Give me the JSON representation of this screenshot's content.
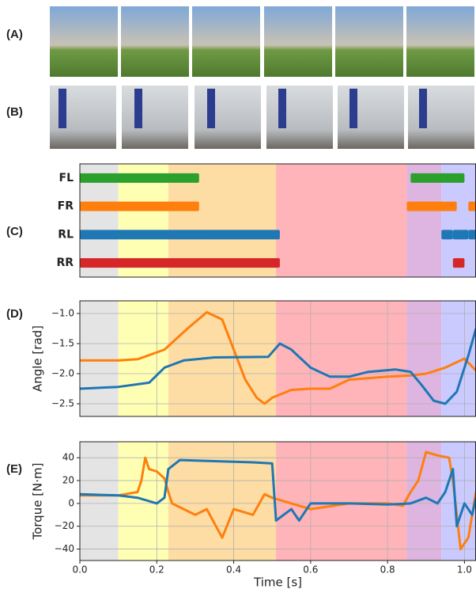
{
  "panels": [
    {
      "label": "(A)"
    },
    {
      "label": "(B)"
    }
  ],
  "chart_data": [
    {
      "type": "gantt",
      "label": "(C)",
      "xlim": [
        0,
        1.03
      ],
      "phases": [
        {
          "start": 0,
          "end": 0.1,
          "color": "#e4e4e4"
        },
        {
          "start": 0.1,
          "end": 0.23,
          "color": "#ffffb3"
        },
        {
          "start": 0.23,
          "end": 0.51,
          "color": "#fddda4"
        },
        {
          "start": 0.51,
          "end": 0.85,
          "color": "#ffb4b9"
        },
        {
          "start": 0.85,
          "end": 0.94,
          "color": "#ddb5e0"
        },
        {
          "start": 0.94,
          "end": 1.03,
          "color": "#cacaff"
        }
      ],
      "categories": [
        "FL",
        "FR",
        "RL",
        "RR"
      ],
      "colors": [
        "#2ca02c",
        "#ff7f0e",
        "#1f77b4",
        "#d62728"
      ],
      "intervals": [
        [
          [
            0,
            0.31
          ],
          [
            0.86,
            1.0
          ]
        ],
        [
          [
            0,
            0.31
          ],
          [
            0.85,
            0.98
          ],
          [
            1.01,
            1.03
          ]
        ],
        [
          [
            0,
            0.52
          ],
          [
            0.94,
            0.97
          ],
          [
            0.97,
            1.01
          ],
          [
            1.01,
            1.03
          ]
        ],
        [
          [
            0,
            0.52
          ],
          [
            0.97,
            1.0
          ]
        ]
      ]
    },
    {
      "type": "line",
      "label": "(D)",
      "ylabel": "Angle [rad]",
      "xlim": [
        0,
        1.03
      ],
      "ylim": [
        -2.71,
        -0.79
      ],
      "yticks": [
        {
          "value": -2.5,
          "label": "−2.5"
        },
        {
          "value": -2.0,
          "label": "−2.0"
        },
        {
          "value": -1.5,
          "label": "−1.5"
        },
        {
          "value": -1.0,
          "label": "−1.0"
        }
      ],
      "grid": true,
      "series": [
        {
          "color": "#ff7f0e",
          "x": [
            0,
            0.1,
            0.15,
            0.22,
            0.28,
            0.33,
            0.37,
            0.4,
            0.43,
            0.46,
            0.48,
            0.5,
            0.55,
            0.6,
            0.65,
            0.7,
            0.8,
            0.86,
            0.9,
            0.95,
            1.0,
            1.03
          ],
          "values": [
            -1.78,
            -1.78,
            -1.76,
            -1.6,
            -1.25,
            -0.98,
            -1.1,
            -1.6,
            -2.1,
            -2.4,
            -2.5,
            -2.4,
            -2.27,
            -2.25,
            -2.25,
            -2.1,
            -2.05,
            -2.03,
            -2.0,
            -1.9,
            -1.75,
            -1.95
          ]
        },
        {
          "color": "#1f77b4",
          "x": [
            0,
            0.1,
            0.18,
            0.22,
            0.27,
            0.35,
            0.49,
            0.52,
            0.55,
            0.6,
            0.65,
            0.7,
            0.75,
            0.82,
            0.86,
            0.89,
            0.92,
            0.95,
            0.98,
            1.01,
            1.03
          ],
          "values": [
            -2.25,
            -2.22,
            -2.15,
            -1.9,
            -1.78,
            -1.73,
            -1.72,
            -1.5,
            -1.6,
            -1.9,
            -2.05,
            -2.05,
            -1.97,
            -1.93,
            -1.97,
            -2.2,
            -2.45,
            -2.5,
            -2.3,
            -1.7,
            -1.25
          ]
        }
      ]
    },
    {
      "type": "line",
      "label": "(E)",
      "ylabel": "Torque [N·m]",
      "xlabel": "Time [s]",
      "xlim": [
        0,
        1.03
      ],
      "ylim": [
        -50,
        54
      ],
      "xticks": [
        {
          "value": 0,
          "label": "0.0"
        },
        0.2,
        0.4,
        0.6,
        0.8,
        {
          "value": 1,
          "label": "1.0"
        }
      ],
      "yticks": [
        {
          "value": -40,
          "label": "−40"
        },
        {
          "value": -20,
          "label": "−20"
        },
        0,
        20,
        40
      ],
      "grid": true,
      "series": [
        {
          "color": "#ff7f0e",
          "x": [
            0,
            0.1,
            0.15,
            0.16,
            0.17,
            0.18,
            0.2,
            0.22,
            0.23,
            0.24,
            0.27,
            0.3,
            0.33,
            0.37,
            0.4,
            0.45,
            0.48,
            0.5,
            0.55,
            0.6,
            0.7,
            0.8,
            0.84,
            0.86,
            0.88,
            0.9,
            0.93,
            0.96,
            0.97,
            0.99,
            1.01,
            1.03
          ],
          "values": [
            7,
            7,
            10,
            20,
            40,
            30,
            28,
            22,
            10,
            0,
            -5,
            -10,
            -5,
            -30,
            -5,
            -10,
            8,
            5,
            0,
            -5,
            0,
            0,
            -2,
            10,
            20,
            45,
            42,
            40,
            20,
            -40,
            -30,
            10
          ]
        },
        {
          "color": "#1f77b4",
          "x": [
            0,
            0.1,
            0.15,
            0.2,
            0.22,
            0.23,
            0.26,
            0.35,
            0.45,
            0.5,
            0.51,
            0.55,
            0.57,
            0.6,
            0.7,
            0.8,
            0.86,
            0.9,
            0.93,
            0.95,
            0.97,
            0.98,
            1.0,
            1.02,
            1.03
          ],
          "values": [
            8,
            7,
            5,
            0,
            5,
            30,
            38,
            37,
            36,
            35,
            -15,
            -5,
            -15,
            0,
            0,
            -1,
            0,
            5,
            0,
            10,
            30,
            -20,
            0,
            -10,
            5
          ]
        }
      ]
    }
  ]
}
